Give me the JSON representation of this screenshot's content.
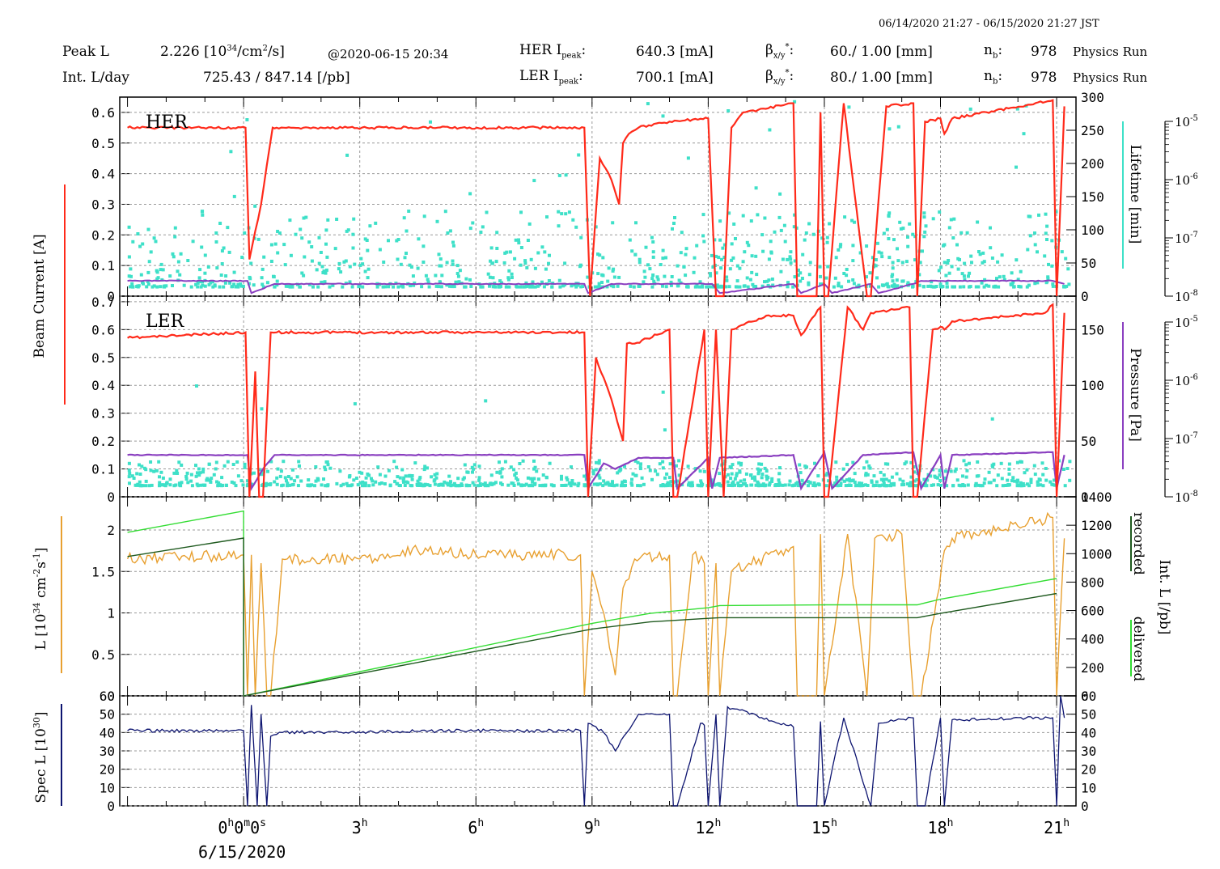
{
  "header": {
    "timestamp_range": "06/14/2020 21:27 - 06/15/2020 21:27 JST",
    "peak_l_label": "Peak L",
    "peak_l_value": "2.226",
    "peak_l_unit_open": "[10",
    "peak_l_unit_exp": "34",
    "peak_l_unit_mid": "/cm",
    "peak_l_unit_exp2": "2",
    "peak_l_unit_close": "/s]",
    "peak_l_time": "@2020-06-15 20:34",
    "int_l_label": "Int. L/day",
    "int_l_value": "725.43 /  847.14 [/pb]",
    "her_ipeak_label": "HER I",
    "her_ipeak_sub": "peak",
    "her_ipeak_value": "640.3 [mA]",
    "ler_ipeak_label": "LER I",
    "ler_ipeak_sub": "peak",
    "ler_ipeak_value": "700.1 [mA]",
    "beta_symbol": "β",
    "beta_sub": "x/y",
    "beta_sup": "*",
    "her_beta_value": "60./ 1.00 [mm]",
    "ler_beta_value": "80./ 1.00 [mm]",
    "nb_symbol": "n",
    "nb_sub": "b",
    "her_nb_value": "978",
    "ler_nb_value": "978",
    "her_mode": "Physics Run",
    "ler_mode": "Physics Run"
  },
  "colors": {
    "current": "#ff2a1a",
    "lifetime": "#3ee0c8",
    "pressure": "#8a3fc0",
    "luminosity": "#e8a030",
    "recorded": "#1f5a1f",
    "delivered": "#33dd33",
    "spec": "#0d1470",
    "grid": "#999999"
  },
  "chart_data": [
    {
      "type": "line",
      "panel": "HER",
      "label": "HER",
      "ylabel": "Beam Current [A]",
      "ylim": [
        0,
        0.65
      ],
      "yticks": [
        "0",
        "0.1",
        "0.2",
        "0.3",
        "0.4",
        "0.5",
        "0.6"
      ],
      "right_ylabel": "Lifetime [min]",
      "right_ylim": [
        0,
        300
      ],
      "right_yticks": [
        "0",
        "50",
        "100",
        "150",
        "200",
        "250",
        "300"
      ],
      "far_right_yticks": [
        "10-8",
        "10-7",
        "10-6",
        "10-5"
      ],
      "series": [
        {
          "key": "current",
          "x": [
            -3,
            0.05,
            0.15,
            0.45,
            0.75,
            0.85,
            8.8,
            8.95,
            9.2,
            9.5,
            9.7,
            9.8,
            9.95,
            10.2,
            11,
            12,
            12.2,
            12.4,
            12.6,
            12.9,
            14.2,
            14.3,
            14.8,
            14.9,
            15,
            15.1,
            15.5,
            16.1,
            16.2,
            16.6,
            17.3,
            17.4,
            17.6,
            18,
            18.1,
            18.3,
            20.9,
            21,
            21.2
          ],
          "y": [
            0.55,
            0.55,
            0.12,
            0.3,
            0.55,
            0.55,
            0.55,
            0.0,
            0.45,
            0.38,
            0.3,
            0.5,
            0.53,
            0.55,
            0.57,
            0.58,
            0.0,
            0.0,
            0.55,
            0.6,
            0.63,
            0.0,
            0.0,
            0.6,
            0.0,
            0.0,
            0.63,
            0.0,
            0.0,
            0.62,
            0.63,
            0.0,
            0.57,
            0.58,
            0.53,
            0.58,
            0.64,
            0.0,
            0.62
          ]
        },
        {
          "key": "pressure",
          "x": [
            -3,
            0.1,
            0.2,
            0.8,
            8.8,
            8.9,
            9.5,
            10.2,
            12.1,
            12.3,
            14.2,
            14.4,
            15,
            15.2,
            16.2,
            16.4,
            17.3,
            17.5,
            20.9,
            21.2
          ],
          "y": [
            0.05,
            0.05,
            0.01,
            0.04,
            0.04,
            0.01,
            0.04,
            0.04,
            0.04,
            0.01,
            0.04,
            0.01,
            0.04,
            0.01,
            0.04,
            0.01,
            0.04,
            0.05,
            0.05,
            0.04
          ]
        }
      ]
    },
    {
      "type": "line",
      "panel": "LER",
      "label": "LER",
      "ylim": [
        0,
        0.72
      ],
      "yticks": [
        "0",
        "0.1",
        "0.2",
        "0.3",
        "0.4",
        "0.5",
        "0.6",
        "0.7"
      ],
      "right_ylabel": "Pressure [Pa]",
      "right_ylim": [
        0,
        180
      ],
      "right_yticks": [
        "0",
        "50",
        "100",
        "150"
      ],
      "far_right_yticks": [
        "10-8",
        "10-7",
        "10-6",
        "10-5"
      ],
      "series": [
        {
          "key": "current",
          "x": [
            -3,
            0.05,
            0.15,
            0.3,
            0.4,
            0.5,
            0.7,
            0.85,
            8.8,
            8.9,
            9.1,
            9.5,
            9.8,
            9.9,
            10.1,
            11.0,
            11.1,
            11.2,
            11.9,
            12.0,
            12.2,
            12.4,
            12.6,
            13.5,
            14.2,
            14.4,
            14.9,
            15.0,
            15.1,
            15.6,
            16.0,
            16.2,
            17.2,
            17.3,
            17.4,
            17.8,
            18.0,
            18.1,
            18.3,
            20.7,
            20.9,
            21.0,
            21.2
          ],
          "y": [
            0.57,
            0.59,
            0.0,
            0.45,
            0.0,
            0.0,
            0.59,
            0.59,
            0.59,
            0.0,
            0.5,
            0.35,
            0.2,
            0.55,
            0.55,
            0.6,
            0.0,
            0.0,
            0.6,
            0.0,
            0.6,
            0.0,
            0.6,
            0.65,
            0.65,
            0.58,
            0.68,
            0.0,
            0.0,
            0.68,
            0.6,
            0.66,
            0.68,
            0.0,
            0.0,
            0.6,
            0.61,
            0.6,
            0.63,
            0.66,
            0.69,
            0.0,
            0.66
          ]
        },
        {
          "key": "pressure",
          "x": [
            -3,
            0.1,
            0.2,
            0.5,
            0.8,
            8.8,
            8.9,
            9.3,
            9.6,
            10.2,
            11.1,
            11.2,
            12.0,
            12.1,
            12.3,
            14.2,
            14.4,
            15.0,
            15.2,
            16.0,
            17.3,
            17.5,
            18.0,
            18.1,
            18.3,
            20.9,
            21.0,
            21.2
          ],
          "y": [
            0.15,
            0.15,
            0.03,
            0.1,
            0.15,
            0.15,
            0.03,
            0.12,
            0.1,
            0.14,
            0.14,
            0.03,
            0.14,
            0.03,
            0.14,
            0.15,
            0.03,
            0.16,
            0.03,
            0.15,
            0.16,
            0.03,
            0.15,
            0.03,
            0.15,
            0.16,
            0.03,
            0.15
          ]
        }
      ]
    },
    {
      "type": "line",
      "panel": "L",
      "ylabel": "L [10^34 cm^-2 s^-1]",
      "ylabel_base": "L [10",
      "ylabel_exp1": "34",
      "ylabel_mid": " cm",
      "ylabel_exp2": "-2",
      "ylabel_mid2": "s",
      "ylabel_exp3": "-1",
      "ylabel_close": "]",
      "ylim": [
        0,
        2.4
      ],
      "yticks": [
        "0",
        "0.5",
        "1",
        "1.5",
        "2"
      ],
      "right_ylabel": "Int. L [/pb]",
      "right_ylim": [
        0,
        1400
      ],
      "right_yticks": [
        "0",
        "200",
        "400",
        "600",
        "800",
        "1000",
        "1200",
        "1400"
      ],
      "legend": [
        "recorded",
        "delivered"
      ],
      "series": [
        {
          "key": "luminosity",
          "x": [
            -3,
            0.0,
            0.1,
            0.2,
            0.3,
            0.45,
            0.6,
            0.7,
            1,
            3,
            4.5,
            6,
            8.7,
            8.8,
            9.0,
            9.3,
            9.6,
            9.8,
            10.1,
            11.0,
            11.1,
            11.2,
            11.6,
            11.9,
            12.0,
            12.2,
            12.3,
            12.6,
            14.2,
            14.3,
            14.8,
            14.9,
            15.0,
            15.6,
            16.1,
            16.3,
            17.0,
            17.3,
            17.5,
            18.1,
            18.3,
            20.5,
            20.9,
            21.0,
            21.2
          ],
          "y": [
            1.65,
            1.7,
            0.0,
            1.7,
            0.0,
            1.6,
            0.0,
            0.0,
            1.65,
            1.65,
            1.75,
            1.7,
            1.7,
            0.0,
            1.5,
            1.0,
            0.25,
            1.3,
            1.65,
            1.7,
            0.0,
            0.0,
            1.7,
            1.6,
            0.0,
            1.6,
            0.0,
            1.5,
            1.8,
            0.0,
            0.0,
            1.95,
            0.0,
            1.95,
            0.0,
            1.9,
            1.95,
            0.0,
            0.0,
            1.75,
            1.9,
            2.1,
            2.15,
            0.0,
            1.9
          ]
        },
        {
          "key": "delivered",
          "x": [
            -3,
            0.0,
            0.0001,
            9.0,
            10.5,
            12.0,
            12.3,
            15.0,
            17.4,
            18.0,
            21.0
          ],
          "int": [
            1150,
            1300,
            0,
            510,
            580,
            620,
            635,
            640,
            640,
            680,
            825
          ]
        },
        {
          "key": "recorded",
          "x": [
            -3,
            0.0,
            0.0001,
            9.0,
            10.5,
            12.0,
            12.3,
            15.0,
            17.4,
            18.0,
            21.0
          ],
          "int": [
            980,
            1110,
            0,
            470,
            520,
            545,
            550,
            550,
            550,
            580,
            720
          ]
        }
      ]
    },
    {
      "type": "line",
      "panel": "Spec",
      "ylabel": "Spec L [10^30]",
      "ylabel_base": "Spec L [10",
      "ylabel_exp": "30",
      "ylabel_close": "]",
      "ylim": [
        0,
        60
      ],
      "yticks": [
        "0",
        "10",
        "20",
        "30",
        "40",
        "50",
        "60"
      ],
      "right_yticks": [
        "0",
        "10",
        "20",
        "30",
        "40",
        "50",
        "60"
      ],
      "series": [
        {
          "key": "spec",
          "x": [
            -3,
            0.0,
            0.1,
            0.2,
            0.35,
            0.45,
            0.6,
            0.7,
            1,
            6,
            8.7,
            8.8,
            8.9,
            9.3,
            9.6,
            9.9,
            10.2,
            11.0,
            11.1,
            11.2,
            11.8,
            11.9,
            12.0,
            12.2,
            12.3,
            12.5,
            14.2,
            14.3,
            14.8,
            14.9,
            15.0,
            15.5,
            16.2,
            16.4,
            17.3,
            17.4,
            17.6,
            18.0,
            18.1,
            18.3,
            20.9,
            21.0,
            21.1,
            21.2
          ],
          "y": [
            41,
            41,
            0,
            55,
            0,
            50,
            0,
            38,
            40,
            41,
            41,
            0,
            45,
            40,
            30,
            40,
            50,
            50,
            0,
            0,
            45,
            44,
            0,
            50,
            0,
            54,
            43,
            0,
            0,
            46,
            0,
            48,
            0,
            45,
            48,
            0,
            0,
            48,
            0,
            47,
            48,
            0,
            60,
            48
          ]
        }
      ]
    }
  ],
  "x_axis": {
    "range": [
      -3.2,
      21.5
    ],
    "tick_hours": [
      0,
      3,
      6,
      9,
      12,
      15,
      18,
      21
    ],
    "tick_labels": [
      "0h0m0s",
      "3h",
      "6h",
      "9h",
      "12h",
      "15h",
      "18h",
      "21h"
    ],
    "first_tick_text": "0",
    "first_tick_parts": [
      "h",
      "0",
      "m",
      "0",
      "s"
    ],
    "date_label": "6/15/2020"
  },
  "lifetime_scatter_her_seed": 7,
  "lifetime_scatter_ler_seed": 13
}
